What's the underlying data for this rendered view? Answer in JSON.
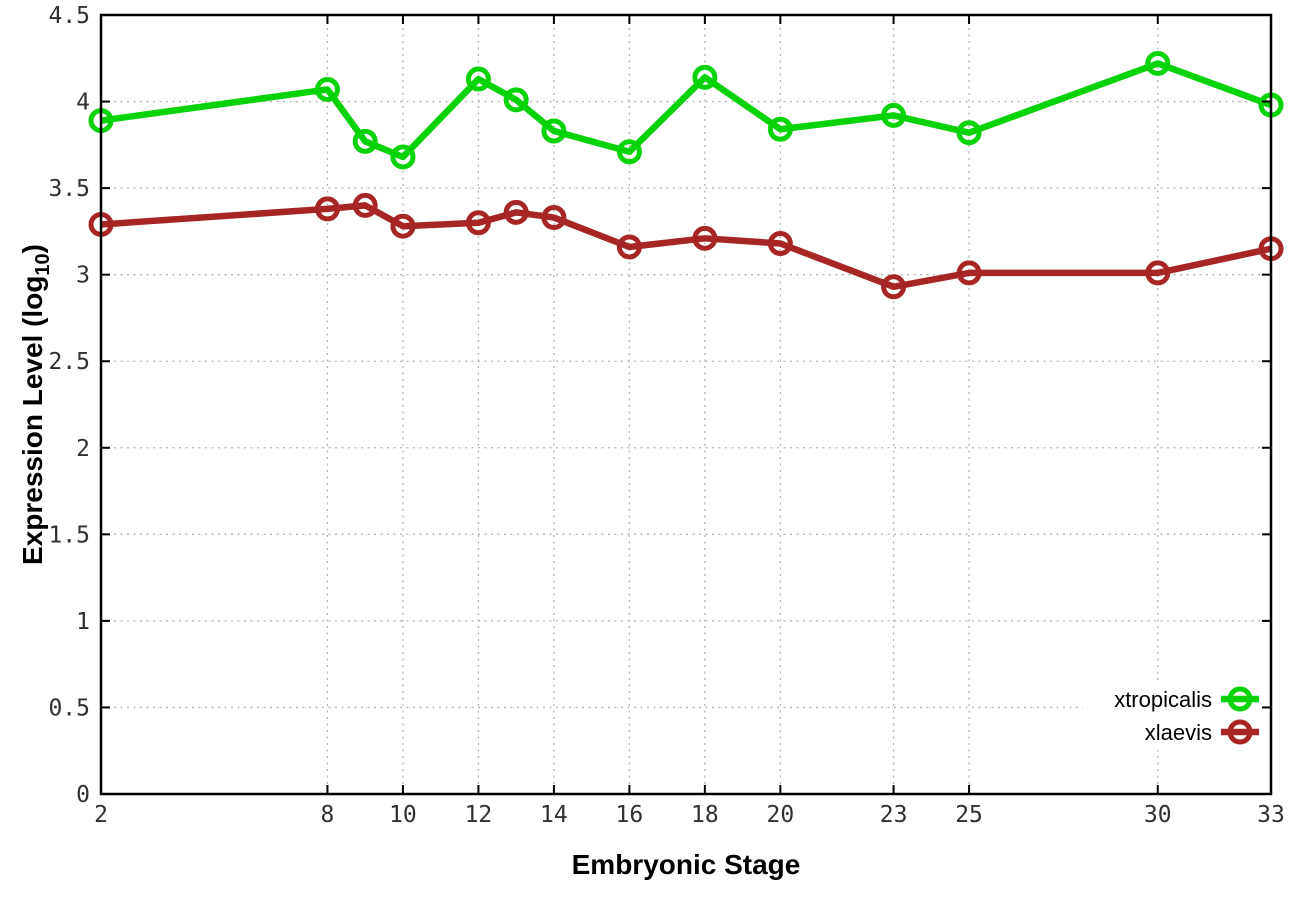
{
  "chart_data": {
    "type": "line",
    "title": "",
    "xlabel": "Embryonic Stage",
    "ylabel": "Expression Level (log10)",
    "ylabel_parts": {
      "main": "Expression Level (log",
      "sub": "10",
      "suffix": ")"
    },
    "x": [
      2,
      8,
      9,
      10,
      12,
      13,
      14,
      16,
      18,
      20,
      23,
      25,
      30,
      33
    ],
    "series": [
      {
        "name": "xtropicalis",
        "color": "#08d208",
        "values": [
          3.89,
          4.07,
          3.77,
          3.68,
          4.13,
          4.01,
          3.83,
          3.71,
          4.14,
          3.84,
          3.92,
          3.82,
          4.22,
          3.98
        ]
      },
      {
        "name": "xlaevis",
        "color": "#a62626",
        "values": [
          3.29,
          3.38,
          3.4,
          3.28,
          3.3,
          3.36,
          3.33,
          3.16,
          3.21,
          3.18,
          2.93,
          3.01,
          3.01,
          3.15
        ]
      }
    ],
    "x_ticks": [
      2,
      8,
      10,
      12,
      14,
      16,
      18,
      20,
      23,
      25,
      30,
      33
    ],
    "x_tick_labels": [
      "2",
      "8",
      "10",
      "12",
      "14",
      "16",
      "18",
      "20",
      "23",
      "25",
      "30",
      "33"
    ],
    "y_ticks": [
      0,
      0.5,
      1,
      1.5,
      2,
      2.5,
      3,
      3.5,
      4,
      4.5
    ],
    "y_tick_labels": [
      "0",
      "0.5",
      "1",
      "1.5",
      "2",
      "2.5",
      "3",
      "3.5",
      "4",
      "4.5"
    ],
    "xlim": [
      2,
      33
    ],
    "ylim": [
      0,
      4.5
    ],
    "grid": true,
    "legend_position": "bottom-right",
    "marker": "open-circle",
    "colors": {
      "background": "#ffffff",
      "axis": "#000000",
      "grid": "#b4b4b4",
      "tick_label": "#303030"
    }
  }
}
